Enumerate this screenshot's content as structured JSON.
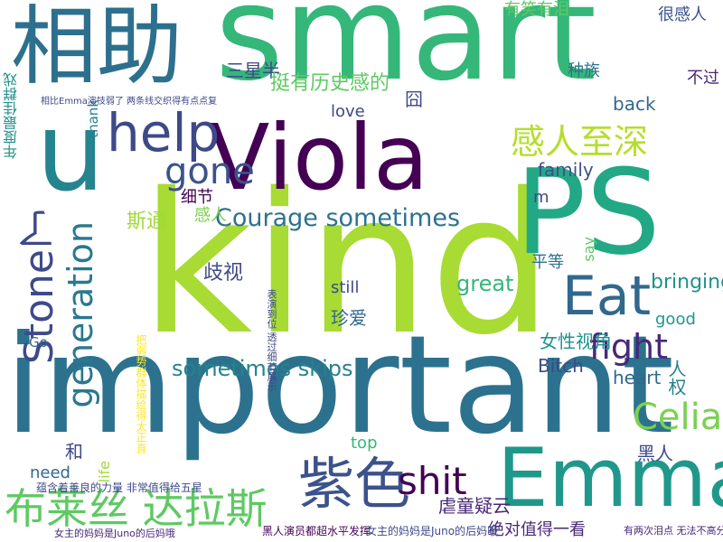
{
  "words": [
    {
      "text": "kind",
      "color": "#a8db34"
    },
    {
      "text": "important",
      "color": "#2c728e"
    },
    {
      "text": "smart",
      "color": "#35b779"
    },
    {
      "text": "相助",
      "color": "#2d708e"
    },
    {
      "text": "PS",
      "color": "#22a884"
    },
    {
      "text": "Viola",
      "color": "#440154"
    },
    {
      "text": "u",
      "color": "#25848e"
    },
    {
      "text": "Emma",
      "color": "#1f988b"
    },
    {
      "text": "紫色",
      "color": "#3b528b"
    },
    {
      "text": "help",
      "color": "#3e4989"
    },
    {
      "text": "Eat",
      "color": "#31688e"
    },
    {
      "text": "布莱丝 达拉斯",
      "color": "#5ec962"
    },
    {
      "text": "generation",
      "color": "#2a788e"
    },
    {
      "text": "Stone了",
      "color": "#3e4a89"
    },
    {
      "text": "感人至深",
      "color": "#b5de2b"
    },
    {
      "text": "fight",
      "color": "#482878"
    },
    {
      "text": "Celia",
      "color": "#7ad151"
    },
    {
      "text": "gone",
      "color": "#3b528b"
    },
    {
      "text": "Courage sometimes",
      "color": "#2c728e"
    },
    {
      "text": "shit",
      "color": "#440154"
    },
    {
      "text": "sometimes skips",
      "color": "#26828e"
    },
    {
      "text": "family",
      "color": "#3b528b"
    },
    {
      "text": "great",
      "color": "#35b779"
    },
    {
      "text": "bringing",
      "color": "#21918c"
    },
    {
      "text": "三星半",
      "color": "#3e4989"
    },
    {
      "text": "挺有历史感的",
      "color": "#5ec962"
    },
    {
      "text": "有笑有泪",
      "color": "#5ec962"
    },
    {
      "text": "很感人",
      "color": "#3b528b"
    },
    {
      "text": "种族",
      "color": "#2c728e"
    },
    {
      "text": "不过",
      "color": "#482878"
    },
    {
      "text": "love",
      "color": "#3e4989"
    },
    {
      "text": "back",
      "color": "#31688e"
    },
    {
      "text": "囧",
      "color": "#404688"
    },
    {
      "text": "女性视角",
      "color": "#21918c"
    },
    {
      "text": "歧视",
      "color": "#3e4989"
    },
    {
      "text": "珍爱",
      "color": "#31688e"
    },
    {
      "text": "平等",
      "color": "#2c728e"
    },
    {
      "text": "黑人",
      "color": "#3e4989"
    },
    {
      "text": "人权",
      "color": "#26828e"
    },
    {
      "text": "细节",
      "color": "#440154"
    },
    {
      "text": "斯通",
      "color": "#a0da39"
    },
    {
      "text": "感人",
      "color": "#7ad151"
    },
    {
      "text": "heart",
      "color": "#31688e"
    },
    {
      "text": "good",
      "color": "#1f988b"
    },
    {
      "text": "Bitch",
      "color": "#3e4989"
    },
    {
      "text": "thank",
      "color": "#26828e"
    },
    {
      "text": "still",
      "color": "#3e4989"
    },
    {
      "text": "need",
      "color": "#31688e"
    },
    {
      "text": "top",
      "color": "#35b779"
    },
    {
      "text": "life",
      "color": "#a0da39"
    },
    {
      "text": "和",
      "color": "#3e4989"
    },
    {
      "text": "虐童疑云",
      "color": "#482878"
    },
    {
      "text": "绝对值得一看",
      "color": "#482878"
    },
    {
      "text": "say",
      "color": "#5ec962"
    },
    {
      "text": "Go",
      "color": "#31688e"
    },
    {
      "text": "m",
      "color": "#3e4989"
    },
    {
      "text": "年度最佳群戏",
      "color": "#21918c"
    },
    {
      "text": "蕴含着善良的力量 非常值得给五星",
      "color": "#3e4989"
    },
    {
      "text": "女主的妈妈是Juno的后妈哦",
      "color": "#482878"
    },
    {
      "text": "黑人演员都超水平发挥",
      "color": "#440154"
    },
    {
      "text": "女主的妈妈是Juno的后妈哦",
      "color": "#3e4989"
    },
    {
      "text": "有两次泪点 无法不高分",
      "color": "#482878"
    },
    {
      "text": "相比Emma演技弱了 两条线交织得有点点复",
      "color": "#3e4989"
    },
    {
      "text": "把弱势群体描绘得太正直",
      "color": "#fde725"
    },
    {
      "text": "表演到位 透过细节展示",
      "color": "#3e4989"
    }
  ]
}
